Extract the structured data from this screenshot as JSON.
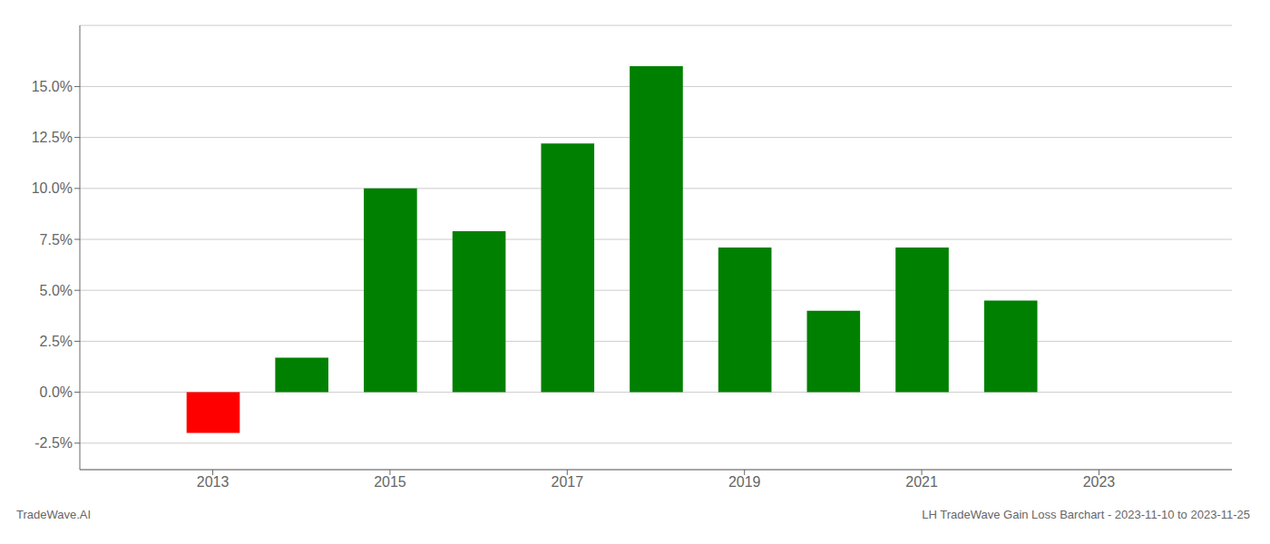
{
  "chart_data": {
    "type": "bar",
    "x": [
      2013,
      2014,
      2015,
      2016,
      2017,
      2018,
      2019,
      2020,
      2021,
      2022
    ],
    "values": [
      -0.02,
      0.017,
      0.1,
      0.079,
      0.122,
      0.16,
      0.071,
      0.04,
      0.071,
      0.045
    ],
    "colors": [
      "#ff0000",
      "#008000",
      "#008000",
      "#008000",
      "#008000",
      "#008000",
      "#008000",
      "#008000",
      "#008000",
      "#008000"
    ],
    "xlim": [
      2011.5,
      2024.5
    ],
    "xticks": [
      2013,
      2015,
      2017,
      2019,
      2021,
      2023
    ],
    "ylim": [
      -0.038,
      0.18
    ],
    "yticks": [
      {
        "value": -0.025,
        "label": "-2.5%"
      },
      {
        "value": 0.0,
        "label": "0.0%"
      },
      {
        "value": 0.025,
        "label": "2.5%"
      },
      {
        "value": 0.05,
        "label": "5.0%"
      },
      {
        "value": 0.075,
        "label": "7.5%"
      },
      {
        "value": 0.1,
        "label": "10.0%"
      },
      {
        "value": 0.125,
        "label": "12.5%"
      },
      {
        "value": 0.15,
        "label": "15.0%"
      }
    ],
    "grid": true,
    "annotations": [
      "TradeWave.AI",
      "LH TradeWave Gain Loss Barchart - 2023-11-10 to 2023-11-25"
    ]
  }
}
